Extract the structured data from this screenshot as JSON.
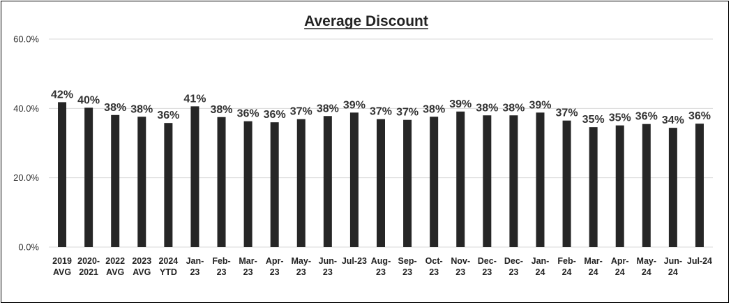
{
  "chart_data": {
    "type": "bar",
    "title": "Average Discount",
    "xlabel": "",
    "ylabel": "",
    "ylim": [
      0,
      60
    ],
    "yticks": [
      "0.0%",
      "20.0%",
      "40.0%",
      "60.0%"
    ],
    "grid": true,
    "bar_color": "#262626",
    "categories": [
      [
        "2019",
        "AVG"
      ],
      [
        "2020-",
        "2021"
      ],
      [
        "2022",
        "AVG"
      ],
      [
        "2023",
        "AVG"
      ],
      [
        "2024",
        "YTD"
      ],
      [
        "Jan-",
        "23"
      ],
      [
        "Feb-",
        "23"
      ],
      [
        "Mar-",
        "23"
      ],
      [
        "Apr-",
        "23"
      ],
      [
        "May-",
        "23"
      ],
      [
        "Jun-",
        "23"
      ],
      [
        "Jul-23"
      ],
      [
        "Aug-",
        "23"
      ],
      [
        "Sep-",
        "23"
      ],
      [
        "Oct-",
        "23"
      ],
      [
        "Nov-",
        "23"
      ],
      [
        "Dec-",
        "23"
      ],
      [
        "Dec-",
        "23"
      ],
      [
        "Jan-",
        "24"
      ],
      [
        "Feb-",
        "24"
      ],
      [
        "Mar-",
        "24"
      ],
      [
        "Apr-",
        "24"
      ],
      [
        "May-",
        "24"
      ],
      [
        "Jun-",
        "24"
      ],
      [
        "Jul-24"
      ]
    ],
    "values": [
      41.8,
      40.2,
      38.1,
      37.6,
      35.8,
      40.6,
      37.5,
      36.3,
      36.0,
      36.9,
      37.8,
      38.8,
      36.9,
      36.7,
      37.6,
      39.1,
      38.0,
      38.0,
      38.8,
      36.5,
      34.6,
      35.1,
      35.5,
      34.4,
      35.6
    ],
    "data_labels": [
      "42%",
      "40%",
      "38%",
      "38%",
      "36%",
      "41%",
      "38%",
      "36%",
      "36%",
      "37%",
      "38%",
      "39%",
      "37%",
      "37%",
      "38%",
      "39%",
      "38%",
      "38%",
      "39%",
      "37%",
      "35%",
      "35%",
      "36%",
      "34%",
      "36%"
    ]
  }
}
